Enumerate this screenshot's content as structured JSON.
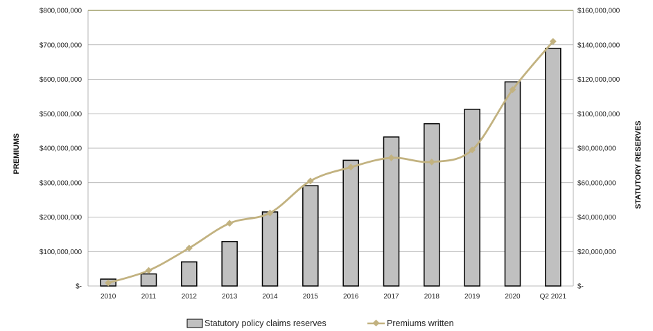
{
  "chart_data": {
    "type": "bar",
    "categories": [
      "2010",
      "2011",
      "2012",
      "2013",
      "2014",
      "2015",
      "2016",
      "2017",
      "2018",
      "2019",
      "2020",
      "Q2 2021"
    ],
    "series": [
      {
        "name": "Statutory policy claims reserves",
        "type": "bar",
        "axis": "right",
        "color": "#c0c0c0",
        "values": [
          4000000,
          7000000,
          14000000,
          25800000,
          43000000,
          58200000,
          73000000,
          86500000,
          94200000,
          102600000,
          118500000,
          138000000
        ]
      },
      {
        "name": "Premiums written",
        "type": "line",
        "axis": "left",
        "color": "#c2b280",
        "values": [
          9000000,
          45000000,
          110000000,
          182000000,
          212000000,
          305000000,
          345000000,
          372000000,
          360000000,
          395000000,
          570000000,
          710000000
        ]
      }
    ],
    "left_axis": {
      "label": "PREMIUMS",
      "range": [
        0,
        800000000
      ],
      "ticks": [
        "$-",
        "$100,000,000",
        "$200,000,000",
        "$300,000,000",
        "$400,000,000",
        "$500,000,000",
        "$600,000,000",
        "$700,000,000",
        "$800,000,000"
      ]
    },
    "right_axis": {
      "label": "STATUTORY RESERVES",
      "range": [
        0,
        160000000
      ],
      "ticks": [
        "$-",
        "$20,000,000",
        "$40,000,000",
        "$60,000,000",
        "$80,000,000",
        "$100,000,000",
        "$120,000,000",
        "$140,000,000",
        "$160,000,000"
      ]
    },
    "grid": true,
    "legend_position": "bottom",
    "colors": {
      "bar_fill": "#c0c0c0",
      "bar_stroke": "#000000",
      "line": "#c2b280",
      "marker": "#c2b280",
      "grid": "#a0a0a0",
      "top_border": "#8c8a4a"
    }
  }
}
